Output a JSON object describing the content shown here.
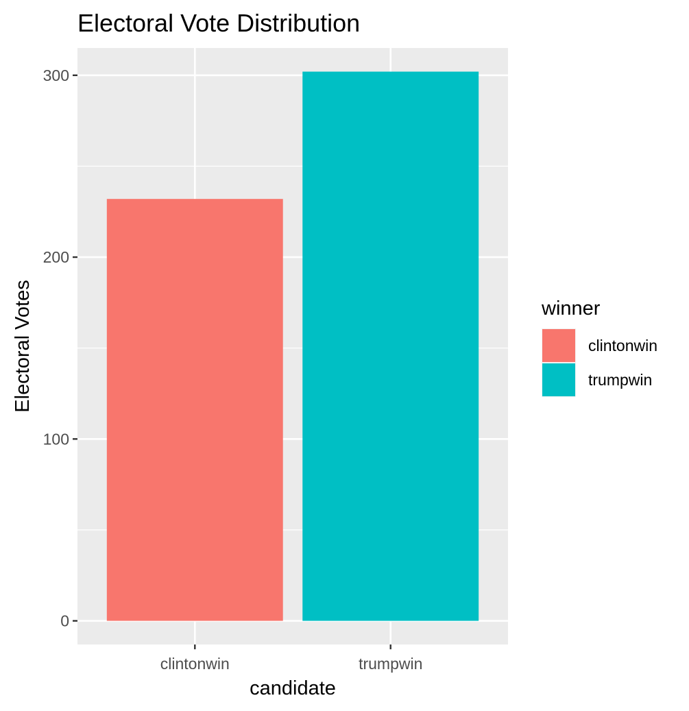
{
  "chart_data": {
    "type": "bar",
    "title": "Electoral Vote Distribution",
    "xlabel": "candidate",
    "ylabel": "Electoral Votes",
    "categories": [
      "clintonwin",
      "trumpwin"
    ],
    "values": [
      232,
      302
    ],
    "colors": [
      "#F8766D",
      "#00BFC4"
    ],
    "ylim": [
      -13,
      315
    ],
    "yticks": [
      0,
      100,
      200,
      300
    ],
    "y_minor_ticks": [
      50,
      150,
      250
    ],
    "grid": true,
    "panel_background": "#EBEBEB",
    "legend": {
      "title": "winner",
      "position": "right",
      "entries": [
        {
          "label": "clintonwin",
          "color": "#F8766D"
        },
        {
          "label": "trumpwin",
          "color": "#00BFC4"
        }
      ]
    }
  }
}
